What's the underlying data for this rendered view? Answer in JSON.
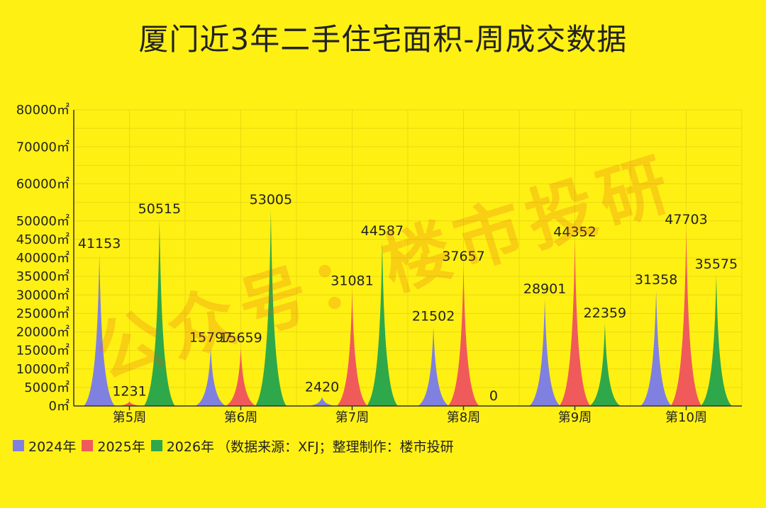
{
  "page": {
    "background": "#FFF014",
    "watermark": "公众号：楼市投研"
  },
  "chart_data": {
    "type": "area",
    "title": "厦门近3年二手住宅面积-周成交数据",
    "categories": [
      "第5周",
      "第6周",
      "第7周",
      "第8周",
      "第9周",
      "第10周"
    ],
    "series": [
      {
        "name": "2024年",
        "color": "#8080E0",
        "values": [
          41153,
          15797,
          2420,
          21502,
          28901,
          31358
        ]
      },
      {
        "name": "2025年",
        "color": "#F05A5A",
        "values": [
          1231,
          15659,
          31081,
          37657,
          44352,
          47703
        ]
      },
      {
        "name": "2026年",
        "color": "#2EA84A",
        "values": [
          50515,
          53005,
          44587,
          0,
          22359,
          35575
        ]
      }
    ],
    "ylim": [
      0,
      80000
    ],
    "yticks": [
      0,
      5000,
      10000,
      15000,
      20000,
      25000,
      30000,
      35000,
      40000,
      45000,
      50000,
      55000,
      60000,
      65000,
      70000,
      75000,
      80000
    ],
    "ytick_labels": [
      "0㎡",
      "5000㎡",
      "10000㎡",
      "15000㎡",
      "20000㎡",
      "25000㎡",
      "30000㎡",
      "35000㎡",
      "40000㎡",
      "45000㎡",
      "50000㎡",
      "",
      "60000㎡",
      "",
      "70000㎡",
      "",
      "80000㎡"
    ],
    "grid": true,
    "legend": "bottom-left",
    "source_note": "（数据来源：XFJ；整理制作：楼市投研"
  }
}
